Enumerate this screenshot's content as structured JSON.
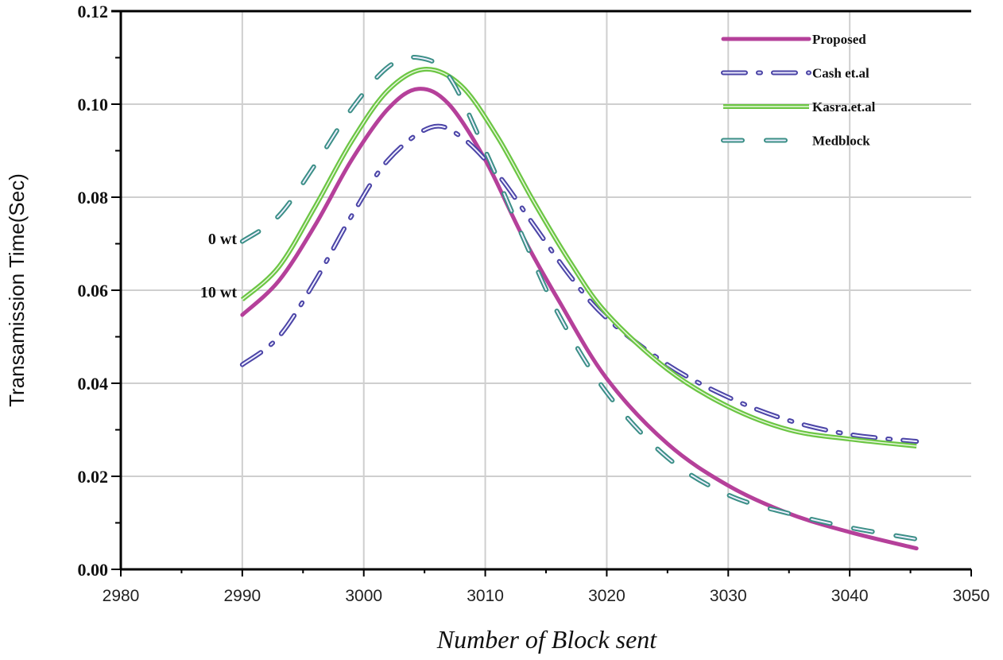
{
  "chart_data": {
    "type": "line",
    "title": "",
    "xlabel": "Number of Block sent",
    "ylabel": "Transamission Time(Sec)",
    "xlim": [
      2980,
      3050
    ],
    "ylim": [
      0,
      0.12
    ],
    "x_ticks": [
      "2980",
      "2990",
      "3000",
      "3010",
      "3020",
      "3030",
      "3040",
      "3050"
    ],
    "y_ticks": [
      "0.00",
      "0.02",
      "0.04",
      "0.06",
      "0.08",
      "0.10",
      "0.12"
    ],
    "grid": true,
    "legend_position": "top-right",
    "annotations": [
      "0 wt",
      "10 wt"
    ],
    "series": [
      {
        "name": "Proposed",
        "color": "#b5409a",
        "style": "solid",
        "x": [
          2990,
          2993,
          2996,
          2999,
          3002,
          3004.5,
          3007,
          3010,
          3013,
          3016,
          3020,
          3025,
          3030,
          3035,
          3040,
          3045.5
        ],
        "y": [
          0.0547,
          0.062,
          0.074,
          0.088,
          0.099,
          0.1033,
          0.1,
          0.088,
          0.072,
          0.058,
          0.041,
          0.027,
          0.018,
          0.012,
          0.008,
          0.0045
        ]
      },
      {
        "name": "Cash et.al",
        "color": "#4b44a6",
        "style": "dash-dot",
        "x": [
          2990,
          2993,
          2996,
          2999,
          3002,
          3005.5,
          3008,
          3011,
          3014,
          3017,
          3020,
          3025,
          3030,
          3035,
          3040,
          3045.5
        ],
        "y": [
          0.044,
          0.05,
          0.062,
          0.076,
          0.088,
          0.095,
          0.093,
          0.085,
          0.074,
          0.063,
          0.054,
          0.044,
          0.037,
          0.032,
          0.029,
          0.0275
        ]
      },
      {
        "name": "Kasra.et.al",
        "color": "#6cc644",
        "style": "solid-double",
        "x": [
          2990,
          2993,
          2996,
          2999,
          3002,
          3005,
          3008,
          3011,
          3014,
          3017,
          3020,
          3025,
          3030,
          3035,
          3040,
          3045.5
        ],
        "y": [
          0.058,
          0.065,
          0.078,
          0.092,
          0.103,
          0.1075,
          0.104,
          0.093,
          0.079,
          0.066,
          0.055,
          0.043,
          0.035,
          0.03,
          0.028,
          0.0265
        ]
      },
      {
        "name": "Medblock",
        "color": "#3b8f86",
        "style": "dash",
        "x": [
          2990,
          2993,
          2996,
          2999,
          3002,
          3004.5,
          3007,
          3010,
          3013,
          3016,
          3020,
          3025,
          3030,
          3035,
          3040,
          3045.5
        ],
        "y": [
          0.0705,
          0.076,
          0.087,
          0.099,
          0.108,
          0.11,
          0.106,
          0.09,
          0.072,
          0.055,
          0.038,
          0.024,
          0.016,
          0.012,
          0.009,
          0.0065
        ]
      }
    ]
  }
}
